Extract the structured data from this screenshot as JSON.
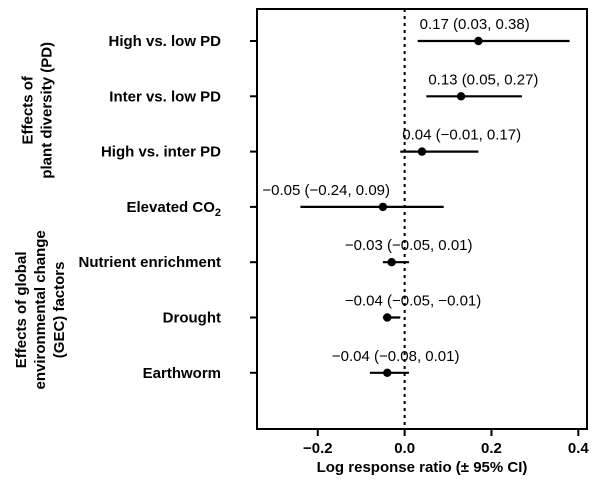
{
  "chart_data": {
    "type": "forest",
    "xlabel": "Log response ratio (± 95% CI)",
    "xlim": [
      -0.34,
      0.42
    ],
    "xticks": [
      -0.2,
      0.0,
      0.2,
      0.4
    ],
    "xtick_labels": [
      "−0.2",
      "0.0",
      "0.2",
      "0.4"
    ],
    "reference_line": 0,
    "groups": [
      {
        "label_lines": [
          "Effects of",
          "plant diversity (PD)"
        ],
        "rows": [
          0,
          1,
          2
        ]
      },
      {
        "label_lines": [
          "Effects of global",
          "environmental change",
          "(GEC) factors"
        ],
        "rows": [
          3,
          4,
          5,
          6
        ]
      }
    ],
    "rows": [
      {
        "label": "High vs. low PD",
        "estimate": 0.17,
        "lower": 0.03,
        "upper": 0.38,
        "annotation": "0.17 (0.03, 0.38)"
      },
      {
        "label": "Inter vs. low PD",
        "estimate": 0.13,
        "lower": 0.05,
        "upper": 0.27,
        "annotation": "0.13 (0.05, 0.27)"
      },
      {
        "label": "High vs. inter PD",
        "estimate": 0.04,
        "lower": -0.01,
        "upper": 0.17,
        "annotation": "0.04 (−0.01, 0.17)"
      },
      {
        "label": "Elevated CO",
        "label_sub": "2",
        "estimate": -0.05,
        "lower": -0.24,
        "upper": 0.09,
        "annotation": "−0.05 (−0.24, 0.09)"
      },
      {
        "label": "Nutrient enrichment",
        "estimate": -0.03,
        "lower": -0.05,
        "upper": 0.01,
        "annotation": "−0.03 (−0.05, 0.01)"
      },
      {
        "label": "Drought",
        "estimate": -0.04,
        "lower": -0.05,
        "upper": -0.01,
        "annotation": "−0.04 (−0.05, −0.01)"
      },
      {
        "label": "Earthworm",
        "estimate": -0.04,
        "lower": -0.08,
        "upper": 0.01,
        "annotation": "−0.04 (−0.08, 0.01)"
      }
    ]
  }
}
